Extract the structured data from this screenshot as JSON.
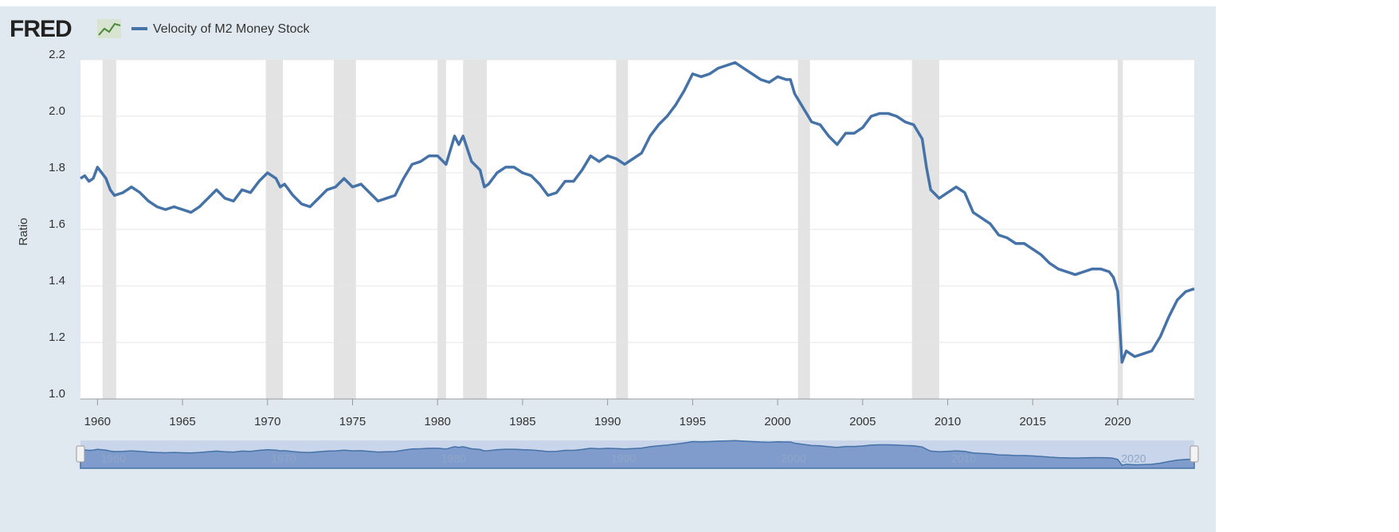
{
  "chart_data": {
    "type": "line",
    "logo": "FRED",
    "y_label": "Ratio",
    "series": [
      {
        "name": "Velocity of M2 Money Stock",
        "color": "#4572a7",
        "x": [
          1959.0,
          1959.25,
          1959.5,
          1959.75,
          1960.0,
          1960.5,
          1960.75,
          1961.0,
          1961.5,
          1962.0,
          1962.5,
          1963.0,
          1963.5,
          1964.0,
          1964.5,
          1965.0,
          1965.5,
          1966.0,
          1966.5,
          1967.0,
          1967.5,
          1968.0,
          1968.5,
          1969.0,
          1969.5,
          1970.0,
          1970.5,
          1970.75,
          1971.0,
          1971.5,
          1972.0,
          1972.5,
          1973.0,
          1973.5,
          1974.0,
          1974.5,
          1975.0,
          1975.5,
          1976.0,
          1976.5,
          1977.0,
          1977.5,
          1978.0,
          1978.5,
          1979.0,
          1979.5,
          1980.0,
          1980.5,
          1981.0,
          1981.25,
          1981.5,
          1982.0,
          1982.5,
          1982.75,
          1983.0,
          1983.5,
          1984.0,
          1984.5,
          1985.0,
          1985.5,
          1986.0,
          1986.5,
          1987.0,
          1987.5,
          1988.0,
          1988.5,
          1989.0,
          1989.5,
          1990.0,
          1990.5,
          1991.0,
          1991.5,
          1992.0,
          1992.5,
          1993.0,
          1993.5,
          1994.0,
          1994.5,
          1995.0,
          1995.5,
          1996.0,
          1996.5,
          1997.0,
          1997.5,
          1998.0,
          1998.5,
          1999.0,
          1999.5,
          2000.0,
          2000.5,
          2000.75,
          2001.0,
          2001.5,
          2002.0,
          2002.5,
          2003.0,
          2003.5,
          2004.0,
          2004.5,
          2005.0,
          2005.5,
          2006.0,
          2006.5,
          2007.0,
          2007.5,
          2008.0,
          2008.5,
          2008.75,
          2009.0,
          2009.5,
          2010.0,
          2010.5,
          2011.0,
          2011.5,
          2012.0,
          2012.5,
          2013.0,
          2013.5,
          2014.0,
          2014.5,
          2015.0,
          2015.5,
          2016.0,
          2016.5,
          2017.0,
          2017.5,
          2018.0,
          2018.5,
          2019.0,
          2019.5,
          2019.75,
          2020.0,
          2020.25,
          2020.5,
          2021.0,
          2021.5,
          2022.0,
          2022.5,
          2023.0,
          2023.5,
          2024.0,
          2024.5
        ],
        "values": [
          1.78,
          1.79,
          1.77,
          1.78,
          1.82,
          1.78,
          1.74,
          1.72,
          1.73,
          1.75,
          1.73,
          1.7,
          1.68,
          1.67,
          1.68,
          1.67,
          1.66,
          1.68,
          1.71,
          1.74,
          1.71,
          1.7,
          1.74,
          1.73,
          1.77,
          1.8,
          1.78,
          1.75,
          1.76,
          1.72,
          1.69,
          1.68,
          1.71,
          1.74,
          1.75,
          1.78,
          1.75,
          1.76,
          1.73,
          1.7,
          1.71,
          1.72,
          1.78,
          1.83,
          1.84,
          1.86,
          1.86,
          1.83,
          1.93,
          1.9,
          1.93,
          1.84,
          1.81,
          1.75,
          1.76,
          1.8,
          1.82,
          1.82,
          1.8,
          1.79,
          1.76,
          1.72,
          1.73,
          1.77,
          1.77,
          1.81,
          1.86,
          1.84,
          1.86,
          1.85,
          1.83,
          1.85,
          1.87,
          1.93,
          1.97,
          2.0,
          2.04,
          2.09,
          2.15,
          2.14,
          2.15,
          2.17,
          2.18,
          2.19,
          2.17,
          2.15,
          2.13,
          2.12,
          2.14,
          2.13,
          2.13,
          2.08,
          2.03,
          1.98,
          1.97,
          1.93,
          1.9,
          1.94,
          1.94,
          1.96,
          2.0,
          2.01,
          2.01,
          2.0,
          1.98,
          1.97,
          1.92,
          1.82,
          1.74,
          1.71,
          1.73,
          1.75,
          1.73,
          1.66,
          1.64,
          1.62,
          1.58,
          1.57,
          1.55,
          1.55,
          1.53,
          1.51,
          1.48,
          1.46,
          1.45,
          1.44,
          1.45,
          1.46,
          1.46,
          1.45,
          1.43,
          1.38,
          1.13,
          1.17,
          1.15,
          1.16,
          1.17,
          1.22,
          1.29,
          1.35,
          1.38,
          1.39
        ]
      }
    ],
    "recessions": [
      [
        1960.3,
        1961.1
      ],
      [
        1969.9,
        1970.9
      ],
      [
        1973.9,
        1975.2
      ],
      [
        1980.0,
        1980.5
      ],
      [
        1981.5,
        1982.9
      ],
      [
        1990.5,
        1991.2
      ],
      [
        2001.2,
        2001.9
      ],
      [
        2007.9,
        2009.5
      ],
      [
        2020.0,
        2020.3
      ]
    ],
    "xlim": [
      1959,
      2024.5
    ],
    "xticks": [
      1960,
      1965,
      1970,
      1975,
      1980,
      1985,
      1990,
      1995,
      2000,
      2005,
      2010,
      2015,
      2020
    ],
    "ylim": [
      1.0,
      2.2
    ],
    "yticks": [
      {
        "value": 1.0,
        "label": "1.0"
      },
      {
        "value": 1.2,
        "label": "1.2"
      },
      {
        "value": 1.4,
        "label": "1.4"
      },
      {
        "value": 1.6,
        "label": "1.6"
      },
      {
        "value": 1.8,
        "label": "1.8"
      },
      {
        "value": 2.0,
        "label": "2.0"
      },
      {
        "value": 2.2,
        "label": "2.2"
      }
    ],
    "grid": true,
    "navigator_ticks": [
      1960,
      1970,
      1980,
      1990,
      2000,
      2010,
      2020
    ]
  }
}
